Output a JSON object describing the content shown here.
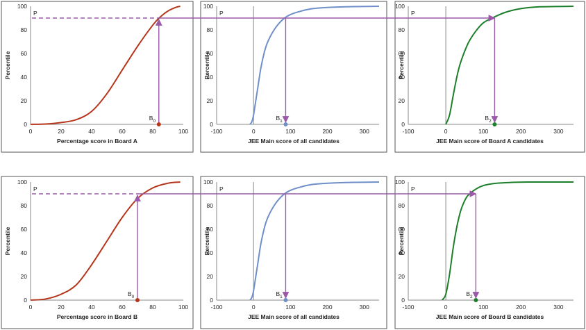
{
  "colors": {
    "board": "#b5361b",
    "all": "#6f8fc9",
    "boardA_jee": "#1c7f2a",
    "boardB_jee": "#1c7f2a",
    "arrow": "#9a5aa8"
  },
  "labels": {
    "p": "P",
    "b0": "B",
    "b0_sub": "0",
    "b1": "B",
    "b1_sub": "1",
    "b2": "B",
    "b2_sub": "2"
  },
  "chart_data": [
    {
      "type": "line",
      "id": "a-board",
      "title": "",
      "xlabel": "Percentage score  in Board A",
      "ylabel": "Percentile",
      "xlim": [
        0,
        100
      ],
      "ylim": [
        0,
        100
      ],
      "xticks": [
        "0",
        "20",
        "40",
        "60",
        "80",
        "100"
      ],
      "yticks": [
        "0",
        "20",
        "40",
        "60",
        "80",
        "100"
      ],
      "curve": "board",
      "color_key": "board",
      "series": [
        {
          "x": [
            0,
            10,
            20,
            30,
            40,
            50,
            60,
            70,
            80,
            85,
            90,
            95,
            98
          ],
          "y": [
            0,
            0.3,
            1.5,
            4,
            11,
            26,
            46,
            66,
            84,
            91,
            96,
            99,
            100
          ]
        }
      ],
      "point": {
        "label": "B0",
        "x": 84,
        "y": 0
      },
      "p_value": 90
    },
    {
      "type": "line",
      "id": "a-all",
      "title": "",
      "xlabel": "JEE Main  score of all candidates",
      "ylabel": "Percentile",
      "xlim": [
        -100,
        340
      ],
      "ylim": [
        0,
        100
      ],
      "xticks": [
        "-100",
        "0",
        "100",
        "200",
        "300"
      ],
      "yticks": [
        "0",
        "20",
        "40",
        "60",
        "80",
        "100"
      ],
      "curve": "all",
      "color_key": "all",
      "series": [
        {
          "x": [
            -10,
            -5,
            0,
            10,
            20,
            30,
            40,
            60,
            80,
            100,
            130,
            160,
            200,
            250,
            340
          ],
          "y": [
            0,
            2,
            8,
            28,
            48,
            62,
            71,
            82,
            89,
            93,
            96,
            98,
            99,
            99.6,
            100
          ]
        }
      ],
      "point": {
        "label": "B1",
        "x": 87,
        "y": 0
      },
      "p_value": 90
    },
    {
      "type": "line",
      "id": "a-jee",
      "title": "",
      "xlabel": "JEE Main  score of Board A candidates",
      "ylabel": "Percentile",
      "xlim": [
        -100,
        340
      ],
      "ylim": [
        0,
        100
      ],
      "xticks": [
        "-100",
        "0",
        "100",
        "200",
        "300"
      ],
      "yticks": [
        "0",
        "20",
        "40",
        "60",
        "80",
        "100"
      ],
      "curve": "boardA_jee",
      "color_key": "boardA_jee",
      "series": [
        {
          "x": [
            0,
            10,
            20,
            30,
            40,
            60,
            80,
            100,
            130,
            160,
            200,
            250,
            340
          ],
          "y": [
            0,
            8,
            25,
            41,
            53,
            69,
            79,
            86,
            91,
            95,
            98,
            99.5,
            100
          ]
        }
      ],
      "point": {
        "label": "B2",
        "x": 130,
        "y": 0
      },
      "p_value": 90
    },
    {
      "type": "line",
      "id": "b-board",
      "title": "",
      "xlabel": "Percentage score  in Board  B",
      "ylabel": "Percentile",
      "xlim": [
        0,
        100
      ],
      "ylim": [
        0,
        100
      ],
      "xticks": [
        "0",
        "20",
        "40",
        "60",
        "80",
        "100"
      ],
      "yticks": [
        "0",
        "20",
        "40",
        "60",
        "80",
        "100"
      ],
      "curve": "board",
      "color_key": "board",
      "series": [
        {
          "x": [
            0,
            10,
            20,
            30,
            40,
            50,
            60,
            70,
            80,
            90,
            98
          ],
          "y": [
            0,
            1,
            5,
            13,
            30,
            50,
            70,
            86,
            95,
            99,
            100
          ]
        }
      ],
      "point": {
        "label": "B0",
        "x": 70,
        "y": 0
      },
      "p_value": 90
    },
    {
      "type": "line",
      "id": "b-all",
      "title": "",
      "xlabel": "JEE Main  score of all candidates",
      "ylabel": "Percentile",
      "xlim": [
        -100,
        340
      ],
      "ylim": [
        0,
        100
      ],
      "xticks": [
        "-100",
        "0",
        "100",
        "200",
        "300"
      ],
      "yticks": [
        "0",
        "20",
        "40",
        "60",
        "80",
        "100"
      ],
      "curve": "all",
      "color_key": "all",
      "series": [
        {
          "x": [
            -10,
            -5,
            0,
            10,
            20,
            30,
            40,
            60,
            80,
            100,
            130,
            160,
            200,
            250,
            340
          ],
          "y": [
            0,
            2,
            8,
            28,
            48,
            62,
            71,
            82,
            89,
            93,
            96,
            98,
            99,
            99.6,
            100
          ]
        }
      ],
      "point": {
        "label": "B1",
        "x": 87,
        "y": 0
      },
      "p_value": 90
    },
    {
      "type": "line",
      "id": "b-jee",
      "title": "",
      "xlabel": "JEE Main  score of Board  B candidates",
      "ylabel": "Percentile",
      "xlim": [
        -100,
        340
      ],
      "ylim": [
        0,
        100
      ],
      "xticks": [
        "-100",
        "0",
        "100",
        "200",
        "300"
      ],
      "yticks": [
        "0",
        "20",
        "40",
        "60",
        "80",
        "100"
      ],
      "curve": "boardB_jee",
      "color_key": "boardB_jee",
      "series": [
        {
          "x": [
            -10,
            0,
            10,
            20,
            30,
            40,
            50,
            60,
            80,
            100,
            130,
            170,
            220,
            340
          ],
          "y": [
            0,
            5,
            22,
            45,
            63,
            76,
            84,
            89,
            94,
            97,
            98.8,
            99.6,
            100,
            100
          ]
        }
      ],
      "point": {
        "label": "B2",
        "x": 80,
        "y": 0
      },
      "p_value": 90
    }
  ]
}
